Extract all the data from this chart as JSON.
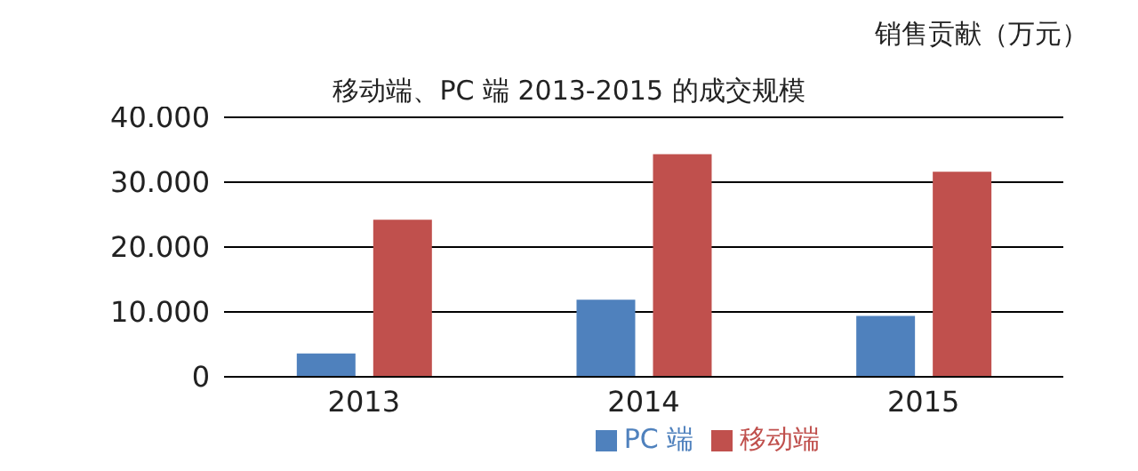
{
  "chart_data": {
    "type": "bar",
    "title": "移动端、PC 端 2013-2015 的成交规模",
    "ylabel": "销售贡献（万元）",
    "categories": [
      "2013",
      "2014",
      "2015"
    ],
    "series": [
      {
        "name": "PC 端",
        "color": "#4f81bd",
        "values": [
          3600,
          11900,
          9400
        ]
      },
      {
        "name": "移动端",
        "color": "#c0504d",
        "values": [
          24200,
          34300,
          31600
        ]
      }
    ],
    "ylim": [
      0,
      40000
    ],
    "yticks": [
      0,
      {
        "value": 10000,
        "label": "10.000"
      },
      {
        "value": 20000,
        "label": "20.000"
      },
      {
        "value": 30000,
        "label": "30.000"
      },
      {
        "value": 40000,
        "label": "40.000"
      }
    ],
    "grid": "y",
    "legend": "bottom"
  }
}
